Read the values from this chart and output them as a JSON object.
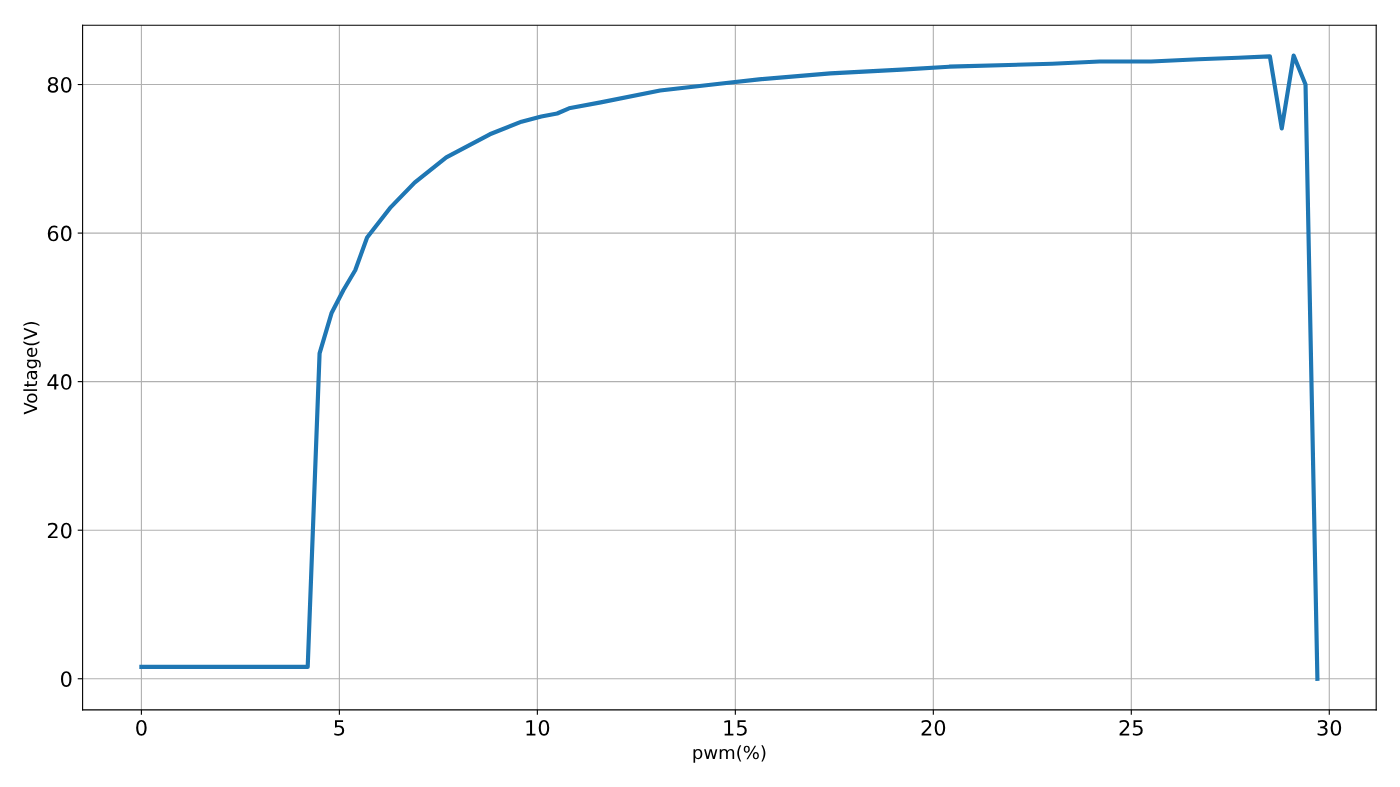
{
  "chart_data": {
    "type": "line",
    "xlabel": "pwm(%)",
    "ylabel": "Voltage(V)",
    "x": [
      0,
      1,
      2,
      3,
      4.2,
      4.5,
      4.8,
      5.1,
      5.4,
      5.7,
      6.3,
      6.9,
      7.7,
      8.8,
      9.6,
      10.1,
      10.5,
      10.8,
      11.6,
      13.1,
      14.6,
      15.6,
      17.4,
      19.2,
      20.4,
      23,
      24.2,
      25.5,
      26.7,
      27.7,
      28.5,
      28.8,
      29.1,
      29.4,
      29.7
    ],
    "series": [
      {
        "color": "#1f77b4",
        "values": [
          1.6,
          1.6,
          1.6,
          1.6,
          1.6,
          43.8,
          49.2,
          52.3,
          55,
          59.4,
          63.5,
          66.8,
          70.2,
          73.3,
          75,
          75.7,
          76.1,
          76.8,
          77.6,
          79.2,
          80.1,
          80.7,
          81.5,
          82,
          82.4,
          82.8,
          83.1,
          83.1,
          83.4,
          83.6,
          83.8,
          74.1,
          83.9,
          80,
          0
        ]
      }
    ],
    "xlim": [
      -1.485,
      31.185
    ],
    "ylim": [
      -4.19,
      87.99
    ],
    "xticks": [
      0,
      5,
      10,
      15,
      20,
      25,
      30
    ],
    "yticks": [
      0,
      20,
      40,
      60,
      80
    ],
    "grid": true,
    "legend": false,
    "marker": "none",
    "line_style": "solid"
  }
}
